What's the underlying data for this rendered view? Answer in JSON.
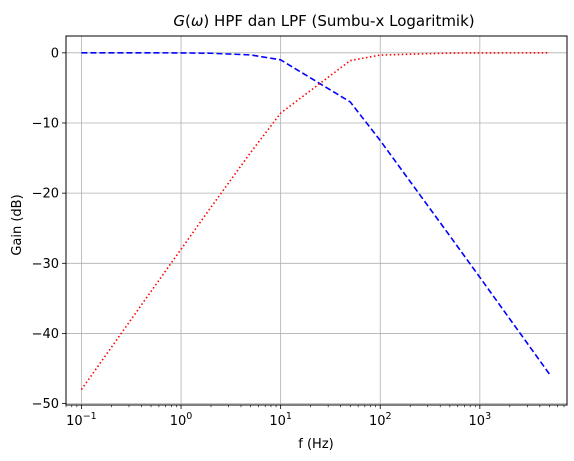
{
  "chart_data": {
    "type": "line",
    "title": "G(ω) HPF dan LPF (Sumbu-x Logaritmik)",
    "title_italic_part": "G",
    "title_omega_part": "ω",
    "title_rest": " HPF dan LPF (Sumbu-x Logaritmik)",
    "xlabel": "f (Hz)",
    "ylabel": "Gain (dB)",
    "xscale": "log",
    "xlim": [
      0.07,
      7500
    ],
    "ylim": [
      -50.2,
      2.4
    ],
    "grid": true,
    "x_tick_values": [
      0.1,
      1,
      10,
      100,
      1000
    ],
    "x_tick_labels": [
      {
        "base": "10",
        "exp": "−1"
      },
      {
        "base": "10",
        "exp": "0"
      },
      {
        "base": "10",
        "exp": "1"
      },
      {
        "base": "10",
        "exp": "2"
      },
      {
        "base": "10",
        "exp": "3"
      }
    ],
    "y_tick_values": [
      0,
      -10,
      -20,
      -30,
      -40,
      -50
    ],
    "y_tick_labels": [
      "0",
      "−10",
      "−20",
      "−30",
      "−40",
      "−50"
    ],
    "series": [
      {
        "color": "#0000ff",
        "dash": "dashed",
        "x": [
          0.1,
          0.5,
          1,
          2,
          5,
          10,
          50,
          100,
          500,
          1000,
          5000
        ],
        "y": [
          0,
          0,
          -0.01,
          -0.06,
          -0.3,
          -1.0,
          -7.0,
          -12.5,
          -26.1,
          -32.0,
          -45.8
        ]
      },
      {
        "color": "#ff0000",
        "dash": "dotted",
        "x": [
          0.1,
          0.5,
          1,
          2,
          5,
          10,
          50,
          100,
          500,
          1000,
          5000
        ],
        "y": [
          -48.0,
          -34.0,
          -28.0,
          -22.0,
          -14.2,
          -8.6,
          -1.1,
          -0.32,
          -0.03,
          -0.01,
          0
        ]
      }
    ]
  }
}
